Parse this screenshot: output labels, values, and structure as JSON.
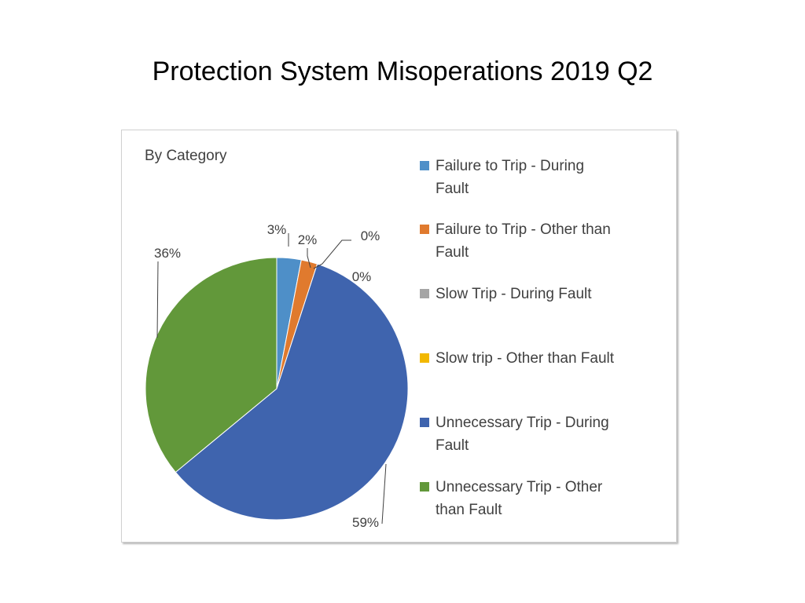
{
  "slide": {
    "title": "Protection System Misoperations 2019 Q2"
  },
  "chart_data": {
    "type": "pie",
    "title": "By Category",
    "legend_position": "right",
    "slices": [
      {
        "name": "Failure to Trip - During Fault",
        "value": 3,
        "label": "3%",
        "color": "#4E8FC8"
      },
      {
        "name": "Failure to Trip - Other than Fault",
        "value": 2,
        "label": "2%",
        "color": "#E07A2E"
      },
      {
        "name": "Slow Trip - During Fault",
        "value": 0,
        "label": "0%",
        "color": "#A5A5A5"
      },
      {
        "name": "Slow trip - Other than Fault",
        "value": 0,
        "label": "0%",
        "color": "#F2B800"
      },
      {
        "name": "Unnecessary Trip - During Fault",
        "value": 59,
        "label": "59%",
        "color": "#3F64AE"
      },
      {
        "name": "Unnecessary Trip - Other than Fault",
        "value": 36,
        "label": "36%",
        "color": "#62983A"
      }
    ]
  }
}
